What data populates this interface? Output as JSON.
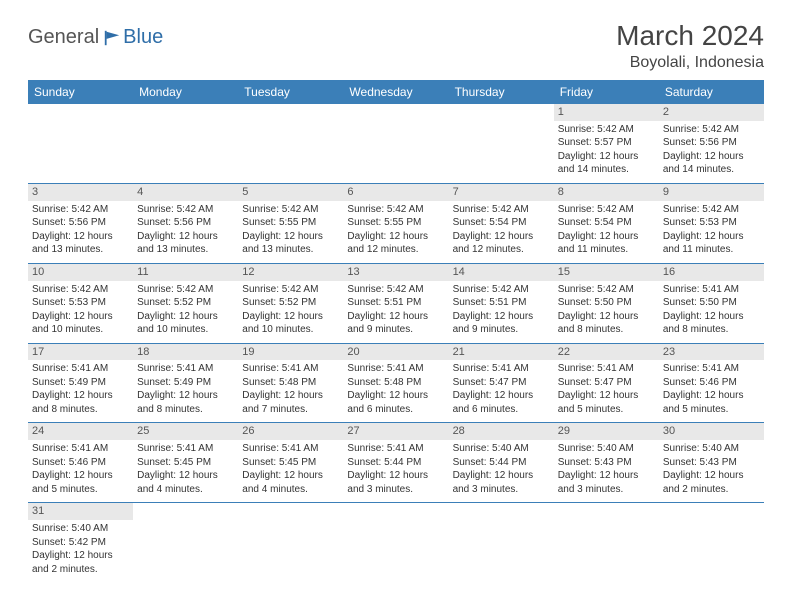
{
  "brand": {
    "part1": "General",
    "part2": "Blue"
  },
  "title": "March 2024",
  "location": "Boyolali, Indonesia",
  "headerBg": "#3b7fb8",
  "dayBg": "#e8e8e8",
  "dayNames": [
    "Sunday",
    "Monday",
    "Tuesday",
    "Wednesday",
    "Thursday",
    "Friday",
    "Saturday"
  ],
  "weeks": [
    [
      null,
      null,
      null,
      null,
      null,
      {
        "n": "1",
        "sr": "5:42 AM",
        "ss": "5:57 PM",
        "dl": "12 hours and 14 minutes."
      },
      {
        "n": "2",
        "sr": "5:42 AM",
        "ss": "5:56 PM",
        "dl": "12 hours and 14 minutes."
      }
    ],
    [
      {
        "n": "3",
        "sr": "5:42 AM",
        "ss": "5:56 PM",
        "dl": "12 hours and 13 minutes."
      },
      {
        "n": "4",
        "sr": "5:42 AM",
        "ss": "5:56 PM",
        "dl": "12 hours and 13 minutes."
      },
      {
        "n": "5",
        "sr": "5:42 AM",
        "ss": "5:55 PM",
        "dl": "12 hours and 13 minutes."
      },
      {
        "n": "6",
        "sr": "5:42 AM",
        "ss": "5:55 PM",
        "dl": "12 hours and 12 minutes."
      },
      {
        "n": "7",
        "sr": "5:42 AM",
        "ss": "5:54 PM",
        "dl": "12 hours and 12 minutes."
      },
      {
        "n": "8",
        "sr": "5:42 AM",
        "ss": "5:54 PM",
        "dl": "12 hours and 11 minutes."
      },
      {
        "n": "9",
        "sr": "5:42 AM",
        "ss": "5:53 PM",
        "dl": "12 hours and 11 minutes."
      }
    ],
    [
      {
        "n": "10",
        "sr": "5:42 AM",
        "ss": "5:53 PM",
        "dl": "12 hours and 10 minutes."
      },
      {
        "n": "11",
        "sr": "5:42 AM",
        "ss": "5:52 PM",
        "dl": "12 hours and 10 minutes."
      },
      {
        "n": "12",
        "sr": "5:42 AM",
        "ss": "5:52 PM",
        "dl": "12 hours and 10 minutes."
      },
      {
        "n": "13",
        "sr": "5:42 AM",
        "ss": "5:51 PM",
        "dl": "12 hours and 9 minutes."
      },
      {
        "n": "14",
        "sr": "5:42 AM",
        "ss": "5:51 PM",
        "dl": "12 hours and 9 minutes."
      },
      {
        "n": "15",
        "sr": "5:42 AM",
        "ss": "5:50 PM",
        "dl": "12 hours and 8 minutes."
      },
      {
        "n": "16",
        "sr": "5:41 AM",
        "ss": "5:50 PM",
        "dl": "12 hours and 8 minutes."
      }
    ],
    [
      {
        "n": "17",
        "sr": "5:41 AM",
        "ss": "5:49 PM",
        "dl": "12 hours and 8 minutes."
      },
      {
        "n": "18",
        "sr": "5:41 AM",
        "ss": "5:49 PM",
        "dl": "12 hours and 8 minutes."
      },
      {
        "n": "19",
        "sr": "5:41 AM",
        "ss": "5:48 PM",
        "dl": "12 hours and 7 minutes."
      },
      {
        "n": "20",
        "sr": "5:41 AM",
        "ss": "5:48 PM",
        "dl": "12 hours and 6 minutes."
      },
      {
        "n": "21",
        "sr": "5:41 AM",
        "ss": "5:47 PM",
        "dl": "12 hours and 6 minutes."
      },
      {
        "n": "22",
        "sr": "5:41 AM",
        "ss": "5:47 PM",
        "dl": "12 hours and 5 minutes."
      },
      {
        "n": "23",
        "sr": "5:41 AM",
        "ss": "5:46 PM",
        "dl": "12 hours and 5 minutes."
      }
    ],
    [
      {
        "n": "24",
        "sr": "5:41 AM",
        "ss": "5:46 PM",
        "dl": "12 hours and 5 minutes."
      },
      {
        "n": "25",
        "sr": "5:41 AM",
        "ss": "5:45 PM",
        "dl": "12 hours and 4 minutes."
      },
      {
        "n": "26",
        "sr": "5:41 AM",
        "ss": "5:45 PM",
        "dl": "12 hours and 4 minutes."
      },
      {
        "n": "27",
        "sr": "5:41 AM",
        "ss": "5:44 PM",
        "dl": "12 hours and 3 minutes."
      },
      {
        "n": "28",
        "sr": "5:40 AM",
        "ss": "5:44 PM",
        "dl": "12 hours and 3 minutes."
      },
      {
        "n": "29",
        "sr": "5:40 AM",
        "ss": "5:43 PM",
        "dl": "12 hours and 3 minutes."
      },
      {
        "n": "30",
        "sr": "5:40 AM",
        "ss": "5:43 PM",
        "dl": "12 hours and 2 minutes."
      }
    ],
    [
      {
        "n": "31",
        "sr": "5:40 AM",
        "ss": "5:42 PM",
        "dl": "12 hours and 2 minutes."
      },
      null,
      null,
      null,
      null,
      null,
      null
    ]
  ],
  "labels": {
    "sunrise": "Sunrise: ",
    "sunset": "Sunset: ",
    "daylight": "Daylight: "
  }
}
